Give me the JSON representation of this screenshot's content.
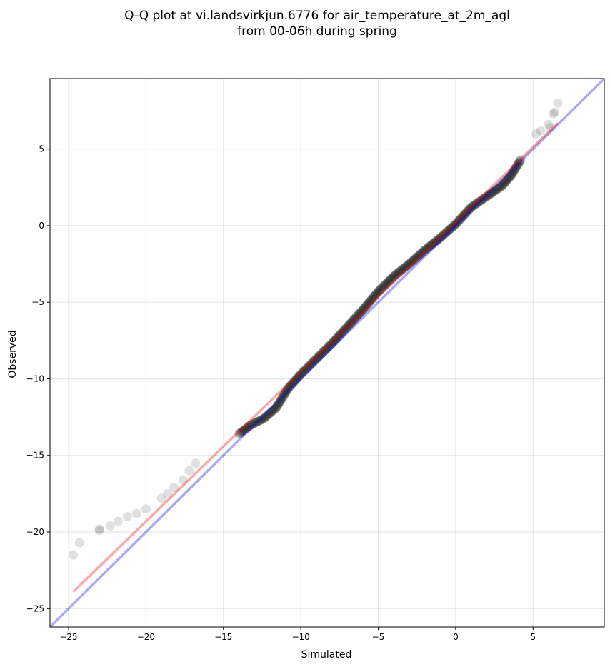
{
  "chart_data": {
    "type": "scatter",
    "title": [
      "Q-Q plot at vi.landsvirkjun.6776 for air_temperature_at_2m_agl",
      "from 00-06h during spring"
    ],
    "xlabel": "Simulated",
    "ylabel": "Observed",
    "xlim": [
      -26.2,
      9.6
    ],
    "ylim": [
      -26.2,
      9.6
    ],
    "xticks": [
      -25,
      -20,
      -15,
      -10,
      -5,
      0,
      5
    ],
    "xtick_labels": [
      "−25",
      "−20",
      "−15",
      "−10",
      "−5",
      "0",
      "5"
    ],
    "yticks": [
      -25,
      -20,
      -15,
      -10,
      -5,
      0,
      5
    ],
    "ytick_labels": [
      "−25",
      "−20",
      "−15",
      "−10",
      "−5",
      "0",
      "5"
    ],
    "grid": true,
    "quantile_curve": [
      [
        -24.7,
        -21.5
      ],
      [
        -24.3,
        -20.7
      ],
      [
        -23.0,
        -19.9
      ],
      [
        -22.3,
        -19.6
      ],
      [
        -21.8,
        -19.3
      ],
      [
        -21.2,
        -19.0
      ],
      [
        -20.6,
        -18.8
      ],
      [
        -20.0,
        -18.5
      ],
      [
        -19.0,
        -17.8
      ],
      [
        -18.3,
        -17.2
      ],
      [
        -17.4,
        -16.3
      ],
      [
        -16.5,
        -15.3
      ],
      [
        -15.7,
        -14.8
      ],
      [
        -14.8,
        -14.1
      ],
      [
        -14.0,
        -13.6
      ],
      [
        -13.2,
        -13.0
      ],
      [
        -12.4,
        -12.6
      ],
      [
        -11.6,
        -11.9
      ],
      [
        -10.8,
        -10.6
      ],
      [
        -10.0,
        -9.7
      ],
      [
        -9.0,
        -8.7
      ],
      [
        -8.0,
        -7.7
      ],
      [
        -7.0,
        -6.6
      ],
      [
        -6.0,
        -5.5
      ],
      [
        -5.0,
        -4.3
      ],
      [
        -4.0,
        -3.3
      ],
      [
        -3.0,
        -2.5
      ],
      [
        -2.0,
        -1.6
      ],
      [
        -1.0,
        -0.8
      ],
      [
        0.0,
        0.1
      ],
      [
        1.0,
        1.2
      ],
      [
        2.0,
        1.9
      ],
      [
        3.0,
        2.6
      ],
      [
        3.6,
        3.3
      ],
      [
        4.2,
        4.3
      ],
      [
        4.8,
        5.4
      ],
      [
        5.3,
        6.2
      ],
      [
        5.8,
        6.5
      ],
      [
        6.3,
        7.3
      ],
      [
        6.6,
        8.0
      ]
    ],
    "outer_points": [
      [
        -24.7,
        -21.5
      ],
      [
        -24.3,
        -20.7
      ],
      [
        -23.0,
        -19.9
      ],
      [
        -23.0,
        -19.8
      ],
      [
        -22.3,
        -19.6
      ],
      [
        -21.8,
        -19.3
      ],
      [
        -21.2,
        -19.0
      ],
      [
        -20.6,
        -18.8
      ],
      [
        -20.0,
        -18.5
      ],
      [
        -19.0,
        -17.8
      ],
      [
        -18.6,
        -17.5
      ],
      [
        -18.2,
        -17.1
      ],
      [
        -17.6,
        -16.6
      ],
      [
        -17.2,
        -16.0
      ],
      [
        -16.8,
        -15.5
      ],
      [
        6.0,
        6.6
      ],
      [
        6.1,
        6.4
      ],
      [
        6.3,
        7.3
      ],
      [
        6.4,
        7.4
      ],
      [
        6.6,
        8.0
      ],
      [
        5.5,
        6.2
      ],
      [
        5.2,
        6.0
      ]
    ],
    "series": [
      {
        "name": "",
        "color": "#0000ee",
        "type": "line",
        "x": [
          -26.2,
          9.6
        ],
        "y": [
          -26.2,
          9.6
        ]
      },
      {
        "name": "",
        "color": "#ee0000",
        "type": "line",
        "x": [
          -24.7,
          6.6
        ],
        "y": [
          -23.9,
          6.7
        ]
      }
    ],
    "point_color": "#000000"
  }
}
